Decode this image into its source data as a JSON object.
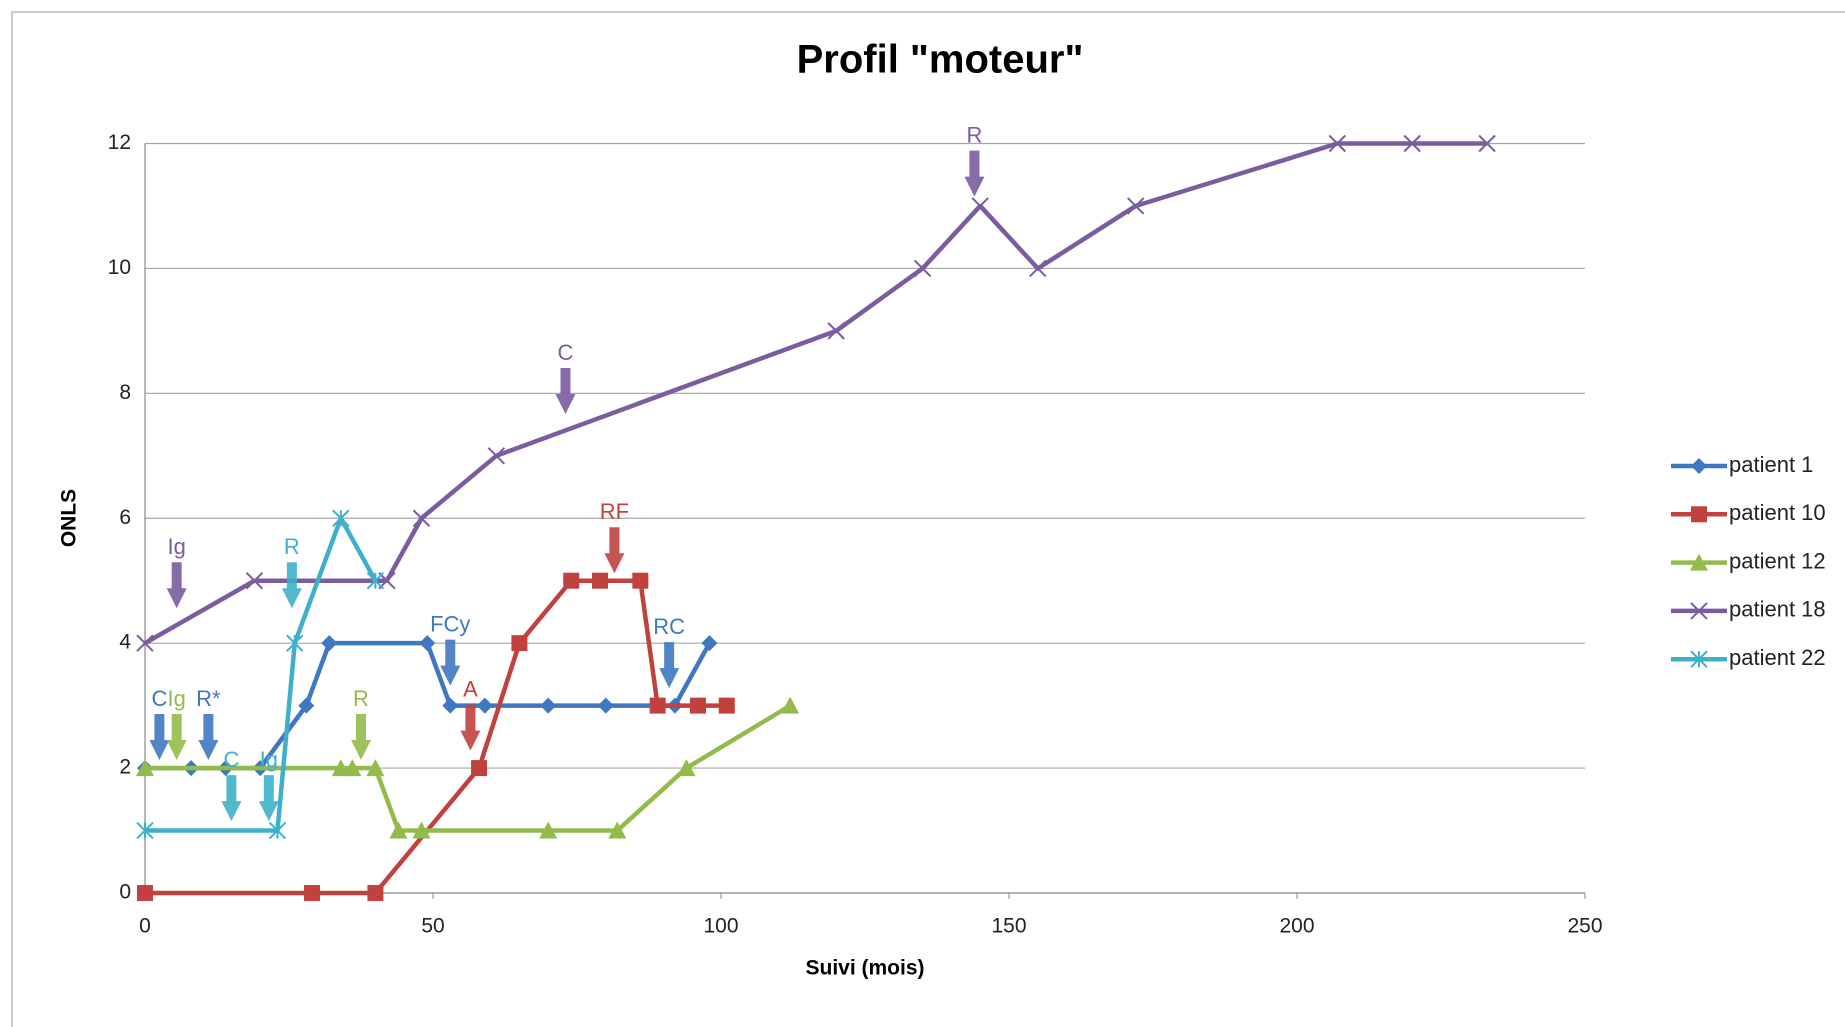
{
  "chart_data": {
    "type": "line",
    "title": "Profil \"moteur\"",
    "xlabel": "Suivi (mois)",
    "ylabel": "ONLS",
    "xlim": [
      0,
      250
    ],
    "xticks": [
      0,
      50,
      100,
      150,
      200,
      250
    ],
    "ylim": [
      0,
      12
    ],
    "yticks": [
      0,
      2,
      4,
      6,
      8,
      10,
      12
    ],
    "grid": true,
    "legend": "right",
    "series": [
      {
        "name": "patient 1",
        "color": "#3f78c0",
        "marker": "diamond",
        "x": [
          0,
          8,
          14,
          20,
          28,
          32,
          49,
          53,
          59,
          70,
          80,
          92,
          98
        ],
        "values": [
          2,
          2,
          2,
          2,
          3,
          4,
          4,
          3,
          3,
          3,
          3,
          3,
          4
        ]
      },
      {
        "name": "patient 10",
        "color": "#c0413e",
        "marker": "square",
        "x": [
          0,
          29,
          40,
          58,
          65,
          74,
          79,
          86,
          89,
          96,
          101
        ],
        "values": [
          0,
          0,
          0,
          2,
          4,
          5,
          5,
          5,
          3,
          3,
          3
        ]
      },
      {
        "name": "patient 12",
        "color": "#92bb4c",
        "marker": "triangle",
        "x": [
          0,
          34,
          36,
          40,
          44,
          48,
          70,
          82,
          94,
          112
        ],
        "values": [
          2,
          2,
          2,
          2,
          1,
          1,
          1,
          1,
          2,
          3
        ]
      },
      {
        "name": "patient 18",
        "color": "#7b5ca0",
        "marker": "cross",
        "x": [
          0,
          19,
          42,
          48,
          61,
          120,
          135,
          145,
          155,
          172,
          207,
          220,
          233
        ],
        "values": [
          4,
          5,
          5,
          6,
          7,
          9,
          10,
          11,
          10,
          11,
          12,
          12,
          12
        ]
      },
      {
        "name": "patient 22",
        "color": "#3fb0c9",
        "marker": "star",
        "x": [
          0,
          23,
          26,
          34,
          40
        ],
        "values": [
          1,
          1,
          4,
          6,
          5
        ]
      }
    ],
    "annotations": [
      {
        "text": "Ig",
        "x": 5.5,
        "y": 4.56,
        "color": "#7b5ca0"
      },
      {
        "text": "R",
        "x": 25.5,
        "y": 4.56,
        "color": "#3fb0c9"
      },
      {
        "text": "C",
        "x": 73,
        "y": 7.67,
        "color": "#7b5ca0"
      },
      {
        "text": "R",
        "x": 144,
        "y": 11.15,
        "color": "#7b5ca0"
      },
      {
        "text": "RF",
        "x": 81.5,
        "y": 5.12,
        "color": "#c0413e"
      },
      {
        "text": "FCy",
        "x": 53,
        "y": 3.32,
        "color": "#3f78c0"
      },
      {
        "text": "RC",
        "x": 91,
        "y": 3.28,
        "color": "#3f78c0"
      },
      {
        "text": "A",
        "x": 56.5,
        "y": 2.28,
        "color": "#c0413e"
      },
      {
        "text": "C",
        "x": 2.5,
        "y": 2.13,
        "color": "#3f78c0"
      },
      {
        "text": "Ig",
        "x": 5.5,
        "y": 2.13,
        "color": "#92bb4c"
      },
      {
        "text": "R*",
        "x": 11,
        "y": 2.13,
        "color": "#3f78c0"
      },
      {
        "text": "C",
        "x": 15,
        "y": 1.15,
        "color": "#3fb0c9"
      },
      {
        "text": "Ig",
        "x": 21.5,
        "y": 1.15,
        "color": "#3fb0c9"
      },
      {
        "text": "R",
        "x": 37.5,
        "y": 2.13,
        "color": "#92bb4c"
      }
    ]
  }
}
